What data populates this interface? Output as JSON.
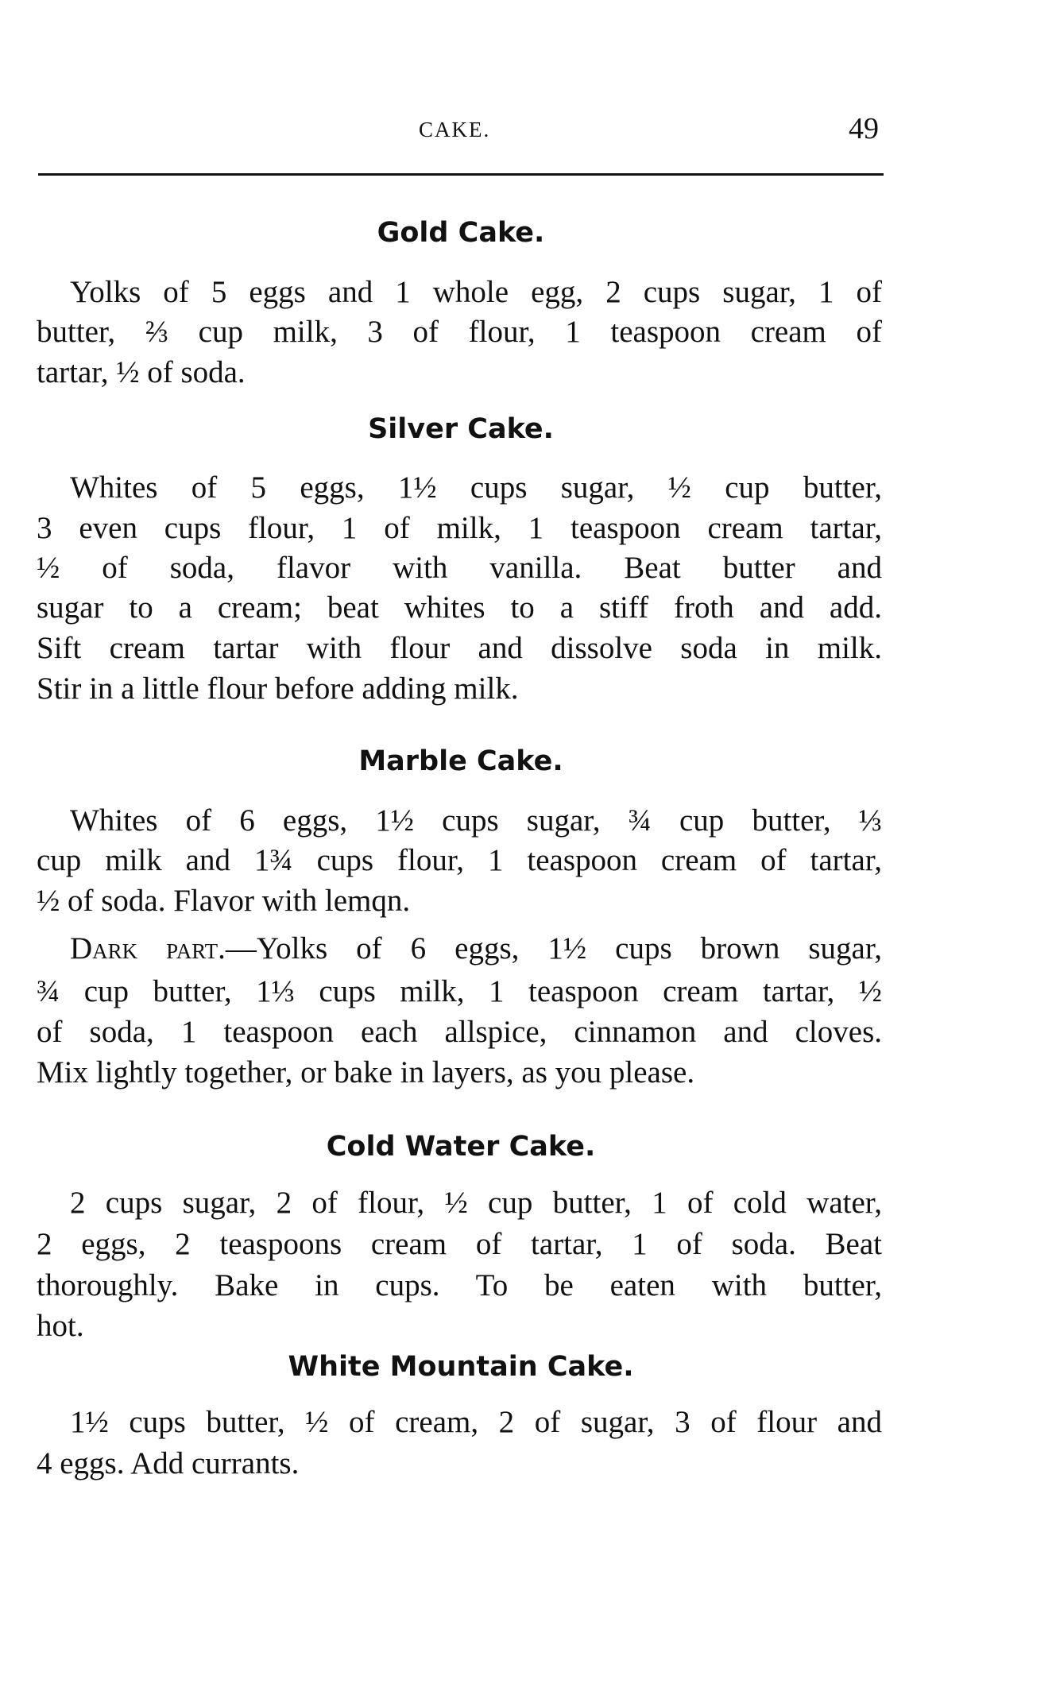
{
  "header": {
    "running_title": "CAKE.",
    "page_number": "49"
  },
  "sections": [
    {
      "title": "Gold Cake.",
      "lines": [
        "Yolks of 5 eggs and 1 whole egg, 2 cups sugar, 1 of",
        "butter, ⅔ cup milk, 3 of flour, 1 teaspoon cream of",
        "tartar, ½ of soda."
      ]
    },
    {
      "title": "Silver Cake.",
      "lines": [
        "Whites of 5 eggs, 1½ cups sugar, ½ cup butter,",
        "3 even cups flour, 1 of milk, 1 teaspoon cream tartar,",
        "½ of soda, flavor with vanilla. Beat butter and",
        "sugar to a cream; beat whites to a stiff froth and add.",
        "Sift cream tartar with flour and dissolve soda in milk.",
        "Stir in a little flour before adding milk."
      ]
    },
    {
      "title": "Marble Cake.",
      "lines": [
        "Whites of 6 eggs, 1½ cups sugar, ¾ cup butter, ⅓",
        "cup milk and 1¾ cups flour, 1 teaspoon cream of tartar,",
        "½ of soda. Flavor with lemqn."
      ],
      "dark_part": {
        "lead": "Dark part.",
        "lines": [
          "—Yolks of 6 eggs, 1½ cups brown sugar,",
          "¾ cup butter, 1⅓ cups milk, 1 teaspoon cream tartar, ½",
          "of soda, 1 teaspoon each allspice, cinnamon and cloves.",
          "Mix lightly together, or bake in layers, as you please."
        ]
      }
    },
    {
      "title": "Cold Water Cake.",
      "lines": [
        "2 cups sugar, 2 of flour, ½ cup butter, 1 of cold water,",
        "2 eggs, 2 teaspoons cream of tartar, 1 of soda. Beat",
        "thoroughly. Bake in cups. To be eaten with butter,",
        "hot."
      ]
    },
    {
      "title": "White Mountain Cake.",
      "lines": [
        "1½ cups butter, ½ of cream, 2 of sugar, 3 of flour and",
        "4 eggs. Add currants."
      ]
    }
  ]
}
